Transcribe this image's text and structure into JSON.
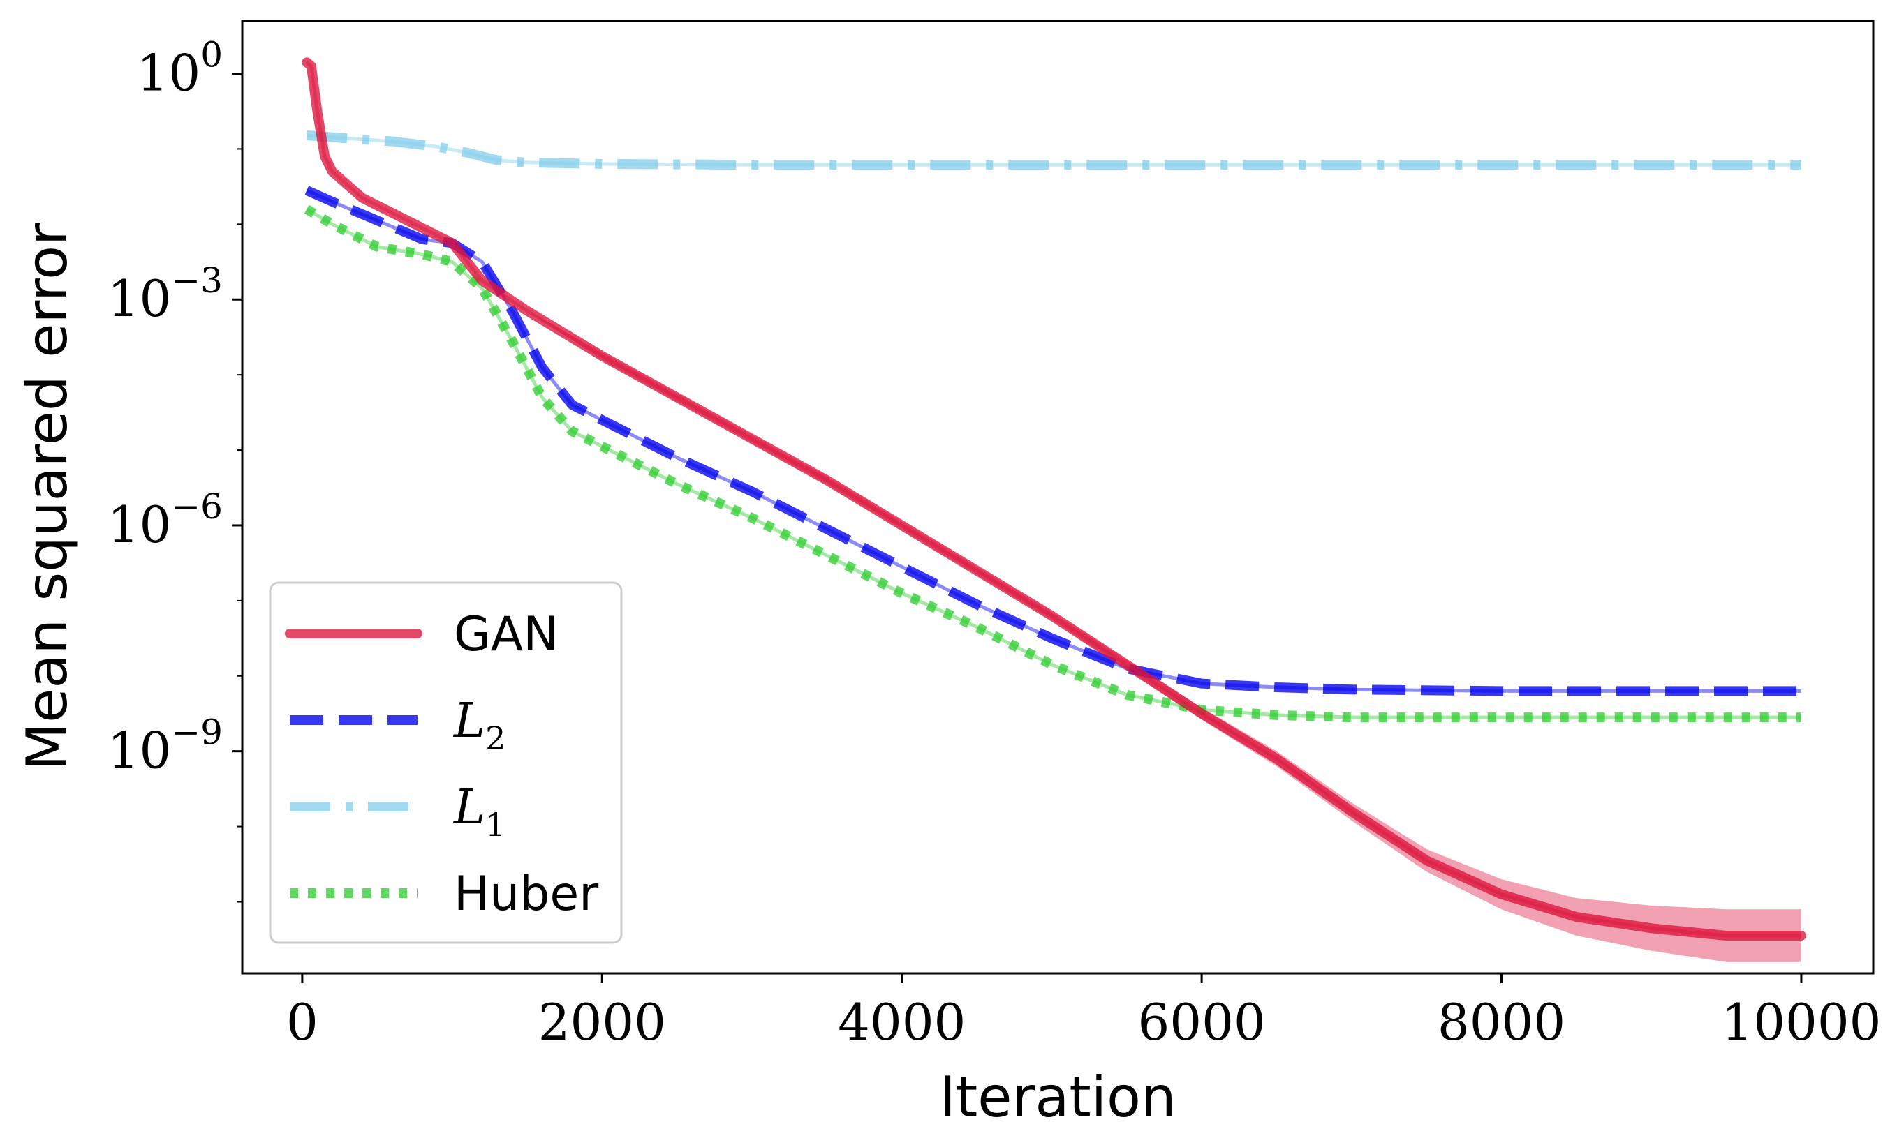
{
  "chart_data": {
    "type": "line",
    "title": "",
    "xlabel": "Iteration",
    "ylabel": "Mean squared error",
    "yscale": "log",
    "xlim": [
      -400,
      10480
    ],
    "ylim_log10": [
      -11.95,
      0.7
    ],
    "xticks": [
      0,
      2000,
      4000,
      6000,
      8000,
      10000
    ],
    "xtick_labels": [
      "0",
      "2000",
      "4000",
      "6000",
      "8000",
      "10000"
    ],
    "yticks_log10": [
      0,
      -3,
      -6,
      -9
    ],
    "ytick_labels": [
      {
        "base": "10",
        "exp": "0"
      },
      {
        "base": "10",
        "exp": "−3"
      },
      {
        "base": "10",
        "exp": "−6"
      },
      {
        "base": "10",
        "exp": "−9"
      }
    ],
    "grid": false,
    "legend_position": "lower-left",
    "series": [
      {
        "name": "GAN",
        "legend_label": "GAN",
        "legend_math": false,
        "color": "#DC143C",
        "style": "solid",
        "x": [
          30,
          60,
          100,
          150,
          200,
          400,
          700,
          1000,
          1200,
          1500,
          2000,
          2500,
          3000,
          3500,
          4000,
          4500,
          5000,
          5500,
          6000,
          6500,
          7000,
          7500,
          8000,
          8500,
          9000,
          9500,
          10000
        ],
        "log10_y": [
          0.15,
          0.1,
          -0.5,
          -1.1,
          -1.3,
          -1.65,
          -1.95,
          -2.25,
          -2.75,
          -3.15,
          -3.75,
          -4.3,
          -4.85,
          -5.4,
          -6.0,
          -6.6,
          -7.2,
          -7.85,
          -8.5,
          -9.1,
          -9.8,
          -10.45,
          -10.9,
          -11.2,
          -11.35,
          -11.45,
          -11.45
        ],
        "band_log10_halfwidth": [
          0,
          0,
          0,
          0,
          0,
          0,
          0,
          0,
          0,
          0,
          0.05,
          0.05,
          0.05,
          0.05,
          0.05,
          0.05,
          0.05,
          0.06,
          0.08,
          0.1,
          0.12,
          0.15,
          0.2,
          0.25,
          0.3,
          0.35,
          0.35
        ]
      },
      {
        "name": "L2",
        "legend_label": "L",
        "legend_sub": "2",
        "legend_math": true,
        "color": "#0000EE",
        "style": "dashed",
        "x": [
          30,
          200,
          500,
          800,
          1000,
          1200,
          1400,
          1600,
          1800,
          2000,
          2500,
          3000,
          3500,
          4000,
          4500,
          5000,
          5500,
          6000,
          6500,
          7000,
          8000,
          9000,
          10000
        ],
        "log10_y": [
          -1.55,
          -1.7,
          -1.95,
          -2.2,
          -2.25,
          -2.5,
          -3.15,
          -3.9,
          -4.4,
          -4.6,
          -5.1,
          -5.55,
          -6.05,
          -6.55,
          -7.05,
          -7.5,
          -7.9,
          -8.1,
          -8.15,
          -8.18,
          -8.2,
          -8.2,
          -8.2
        ]
      },
      {
        "name": "L1",
        "legend_label": "L",
        "legend_sub": "1",
        "legend_math": true,
        "color": "#87CEEB",
        "style": "dashdot",
        "x": [
          30,
          300,
          600,
          900,
          1100,
          1300,
          1500,
          2000,
          3000,
          5000,
          7000,
          10000
        ],
        "log10_y": [
          -0.82,
          -0.86,
          -0.9,
          -0.97,
          -1.05,
          -1.15,
          -1.18,
          -1.2,
          -1.21,
          -1.21,
          -1.21,
          -1.21
        ]
      },
      {
        "name": "Huber",
        "legend_label": "Huber",
        "legend_math": false,
        "color": "#32CD32",
        "style": "dotted",
        "x": [
          30,
          200,
          500,
          800,
          1000,
          1200,
          1400,
          1600,
          1800,
          2000,
          2500,
          3000,
          3500,
          4000,
          4500,
          5000,
          5500,
          6000,
          6500,
          7000,
          8000,
          9000,
          10000
        ],
        "log10_y": [
          -1.8,
          -2.0,
          -2.3,
          -2.4,
          -2.5,
          -2.85,
          -3.55,
          -4.3,
          -4.75,
          -4.95,
          -5.45,
          -5.9,
          -6.4,
          -6.9,
          -7.35,
          -7.85,
          -8.25,
          -8.45,
          -8.52,
          -8.55,
          -8.55,
          -8.55,
          -8.55
        ]
      }
    ]
  }
}
